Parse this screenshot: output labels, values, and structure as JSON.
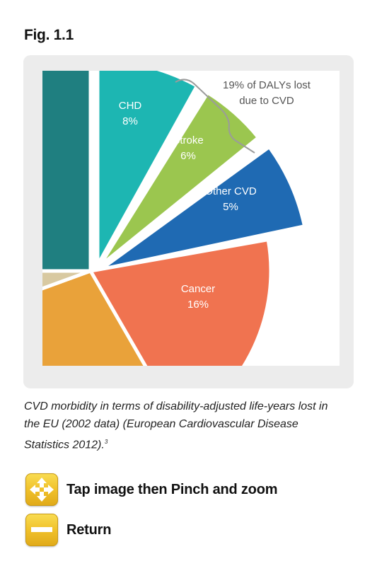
{
  "figure": {
    "title": "Fig. 1.1",
    "caption": "CVD morbidity in terms of disability-adjusted life-years lost in the EU (2002 data) (European Cardiovascular Disease Statistics 2012).",
    "caption_ref": "3"
  },
  "chart_data": {
    "type": "pie",
    "annotation": "19% of DALYs lost due to CVD",
    "slices": [
      {
        "label": "CHD",
        "value": "8%",
        "color": "#1db6b2"
      },
      {
        "label": "Stroke",
        "value": "6%",
        "color": "#9bc64f"
      },
      {
        "label": "Other CVD",
        "value": "5%",
        "color": "#1f6ab3"
      },
      {
        "label": "Cancer",
        "value": "16%",
        "color": "#f07350"
      },
      {
        "label": "",
        "value": "",
        "color": "#e9a23a"
      },
      {
        "label": "",
        "value": "",
        "color": "#d8c9a1"
      },
      {
        "label": "",
        "value": "",
        "color": "#1f7f80"
      }
    ]
  },
  "controls": {
    "zoom_label": "Tap image then Pinch and zoom",
    "zoom_icon": "four-arrows-icon",
    "return_label": "Return",
    "return_icon": "minus-icon"
  }
}
